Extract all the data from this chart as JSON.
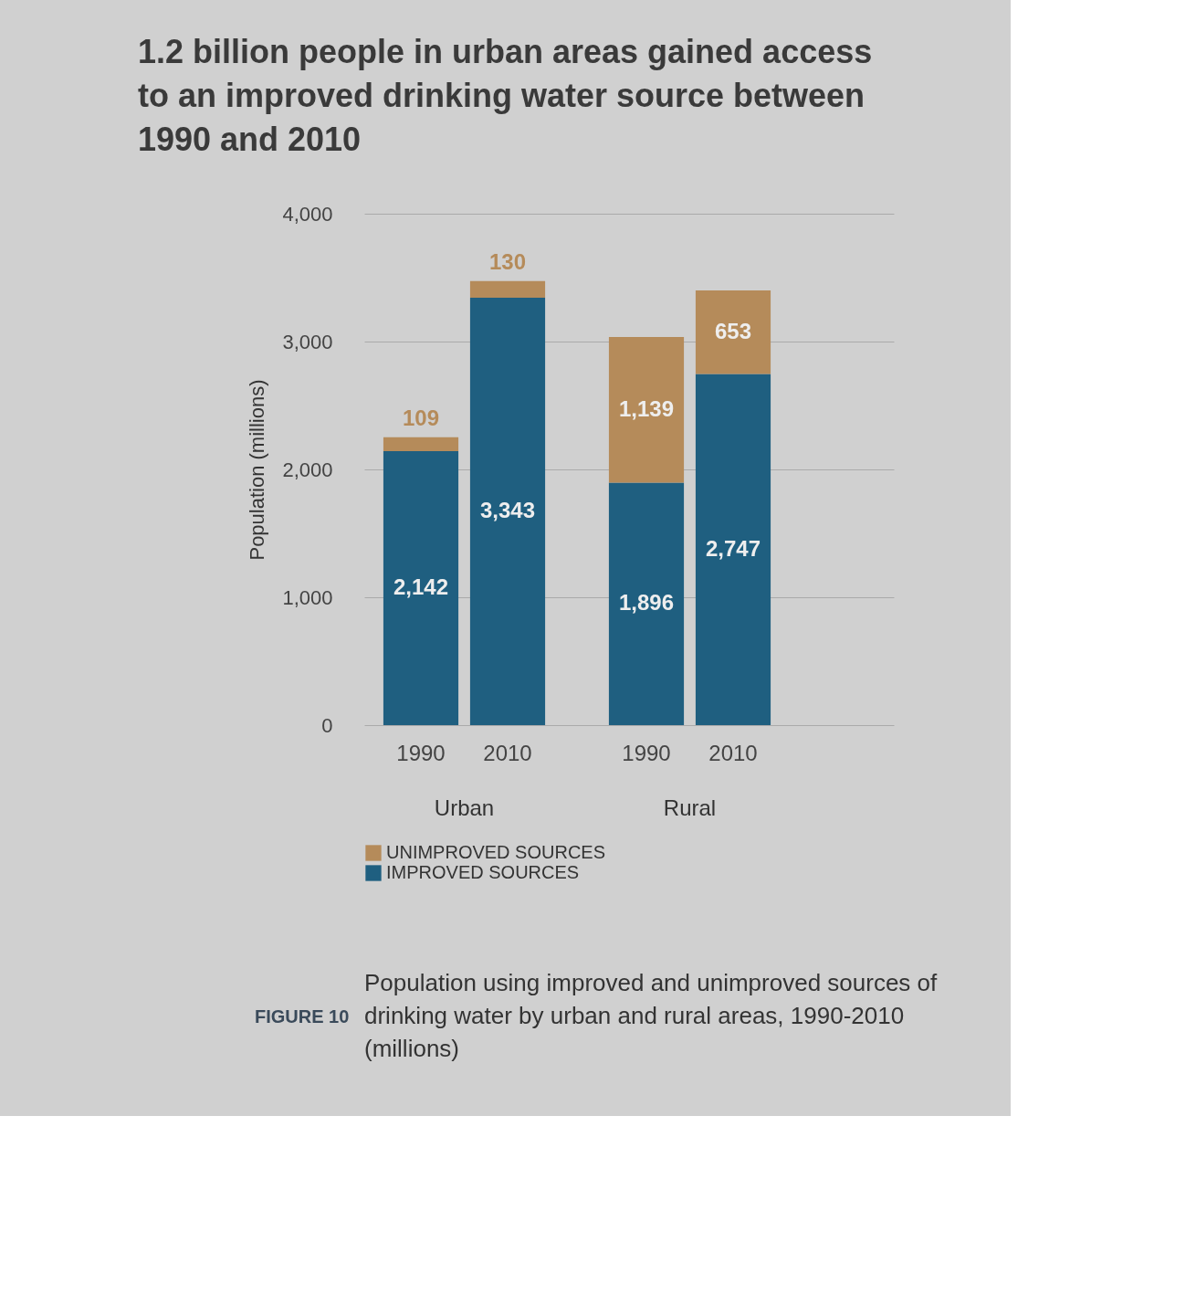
{
  "chart_data": {
    "type": "bar",
    "title": "1.2 billion people in urban areas gained access to an improved drinking water source between 1990 and 2010",
    "ylabel": "Population (millions)",
    "categories": [
      "1990",
      "2010",
      "1990",
      "2010"
    ],
    "stacked": true,
    "series": [
      {
        "name": "IMPROVED SOURCES",
        "color": "#1f5f80",
        "values": [
          2142,
          3343,
          1896,
          2747
        ],
        "value_labels": [
          "2,142",
          "3,343",
          "1,896",
          "2,747"
        ]
      },
      {
        "name": "UNIMPROVED SOURCES",
        "color": "#b58b5a",
        "values": [
          109,
          130,
          1139,
          653
        ],
        "value_labels": [
          "109",
          "130",
          "1,139",
          "653"
        ]
      }
    ],
    "ylim": [
      0,
      4000
    ],
    "yticks": [
      0,
      {
        "value": 1000,
        "label": "1,000"
      },
      {
        "value": 2000,
        "label": "2,000"
      },
      {
        "value": 3000,
        "label": "3,000"
      },
      {
        "value": 4000,
        "label": "4,000"
      }
    ],
    "grid": "y",
    "legend": "bottom",
    "annotations": [
      "Urban",
      "Rural",
      "FIGURE 10",
      "Population using improved and unimproved sources of drinking water by urban and rural areas, 1990-2010 (millions)"
    ]
  }
}
